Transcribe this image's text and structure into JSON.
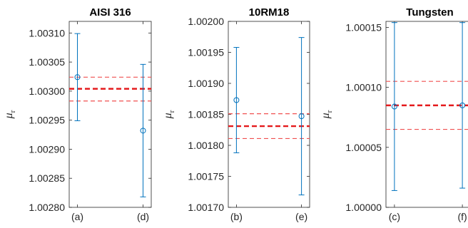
{
  "colors": {
    "data": "#0072BD",
    "mean": "#E41A1C",
    "band": "#F05050",
    "axis": "#262626"
  },
  "chart_data": [
    {
      "type": "scatter",
      "title": "AISI 316",
      "ylabel": "μ",
      "ylabel_sub": "r",
      "categories": [
        "(a)",
        "(d)"
      ],
      "values": [
        1.003024,
        1.002932
      ],
      "errors": [
        7.5e-05,
        0.000114
      ],
      "mean": 1.003004,
      "band": [
        1.002983,
        1.003024
      ],
      "ylim": [
        1.0028,
        1.00312
      ],
      "yticks": [
        1.0028,
        1.00285,
        1.0029,
        1.00295,
        1.003,
        1.00305,
        1.0031
      ],
      "ytick_labels": [
        "1.00280",
        "1.00285",
        "1.00290",
        "1.00295",
        "1.00300",
        "1.00305",
        "1.00310"
      ]
    },
    {
      "type": "scatter",
      "title": "10RM18",
      "ylabel": "μ",
      "ylabel_sub": "r",
      "categories": [
        "(b)",
        "(e)"
      ],
      "values": [
        1.001873,
        1.001847
      ],
      "errors": [
        8.5e-05,
        0.000127
      ],
      "mean": 1.001831,
      "band": [
        1.001811,
        1.001851
      ],
      "ylim": [
        1.0017,
        1.002
      ],
      "yticks": [
        1.0017,
        1.00175,
        1.0018,
        1.00185,
        1.0019,
        1.00195,
        1.002
      ],
      "ytick_labels": [
        "1.00170",
        "1.00175",
        "1.00180",
        "1.00185",
        "1.00190",
        "1.00195",
        "1.00200"
      ]
    },
    {
      "type": "scatter",
      "title": "Tungsten",
      "ylabel": "μ",
      "ylabel_sub": "r",
      "categories": [
        "(c)",
        "(f)"
      ],
      "values": [
        1.000084,
        1.000085
      ],
      "errors": [
        7e-05,
        6.9e-05
      ],
      "mean": 1.000085,
      "band": [
        1.000065,
        1.000105
      ],
      "ylim": [
        1.0,
        1.000155
      ],
      "yticks": [
        1.0,
        1.00005,
        1.0001,
        1.00015
      ],
      "ytick_labels": [
        "1.00000",
        "1.00005",
        "1.00010",
        "1.00015"
      ]
    }
  ]
}
